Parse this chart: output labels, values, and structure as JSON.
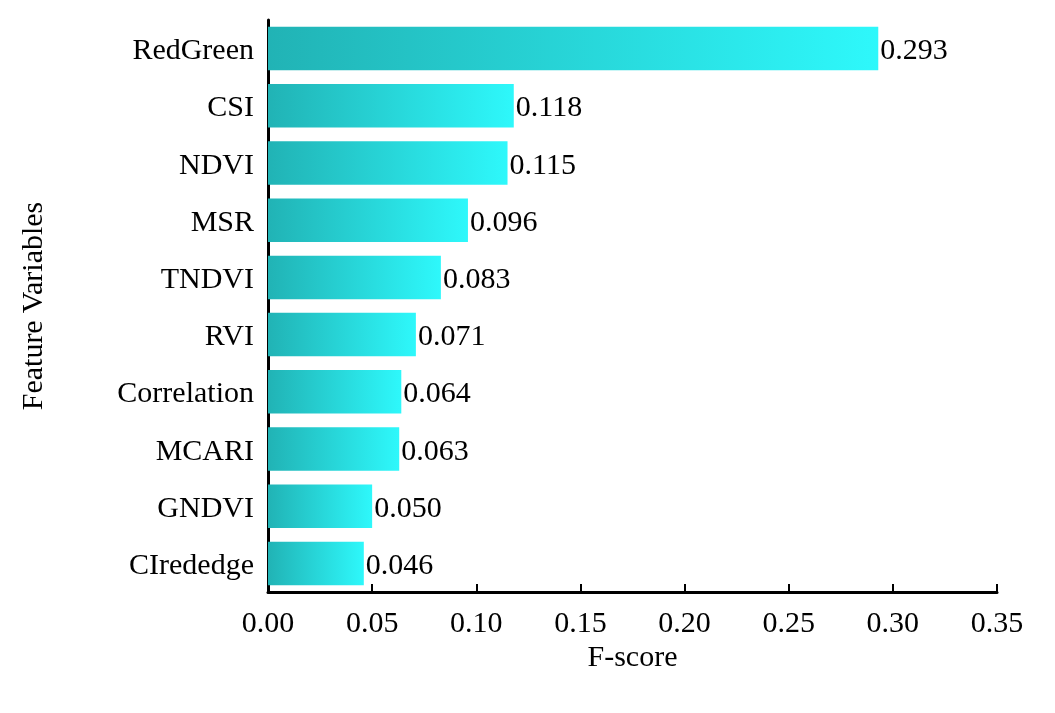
{
  "chart_data": {
    "type": "bar",
    "orientation": "horizontal",
    "xlabel": "F-score",
    "ylabel": "Feature Variables",
    "categories": [
      "RedGreen",
      "CSI",
      "NDVI",
      "MSR",
      "TNDVI",
      "RVI",
      "Correlation",
      "MCARI",
      "GNDVI",
      "CIrededge"
    ],
    "values": [
      0.293,
      0.118,
      0.115,
      0.096,
      0.083,
      0.071,
      0.064,
      0.063,
      0.05,
      0.046
    ],
    "value_labels": [
      "0.293",
      "0.118",
      "0.115",
      "0.096",
      "0.083",
      "0.071",
      "0.064",
      "0.063",
      "0.050",
      "0.046"
    ],
    "color": "#2ef8fb",
    "xlim": [
      0,
      0.35
    ],
    "xticks": [
      {
        "value": 0,
        "label": "0.00"
      },
      {
        "value": 0.05,
        "label": "0.05"
      },
      {
        "value": 0.1,
        "label": "0.10"
      },
      {
        "value": 0.15,
        "label": "0.15"
      },
      {
        "value": 0.2,
        "label": "0.20"
      },
      {
        "value": 0.25,
        "label": "0.25"
      },
      {
        "value": 0.3,
        "label": "0.30"
      },
      {
        "value": 0.35,
        "label": "0.35"
      }
    ],
    "grid": false
  }
}
